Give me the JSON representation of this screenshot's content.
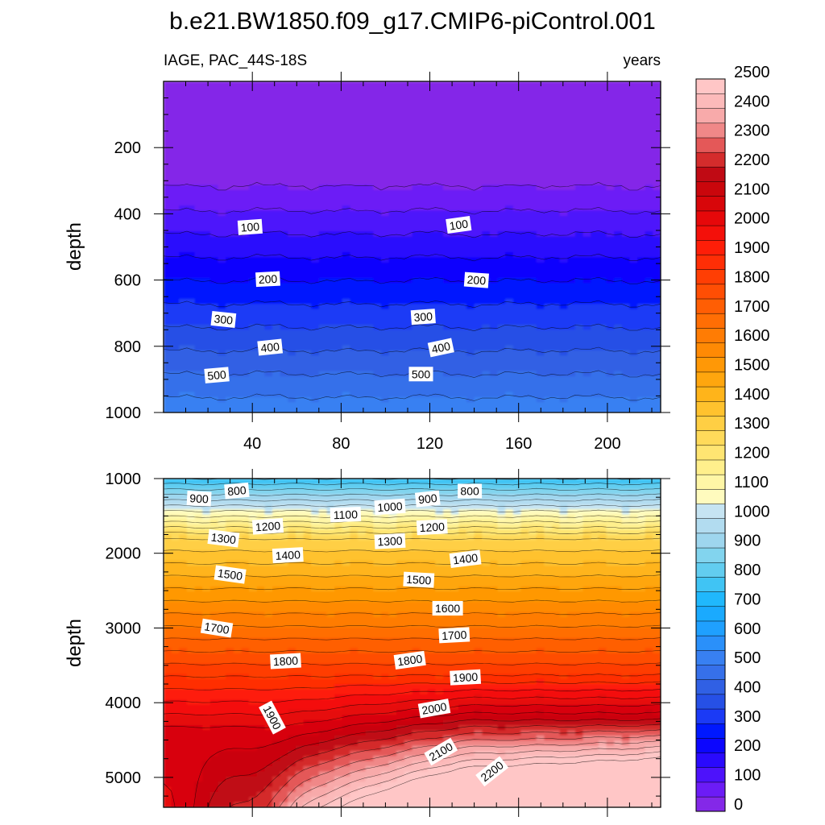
{
  "chart_data": {
    "type": "heatmap",
    "title": "b.e21.BW1850.f09_g17.CMIP6-piControl.001",
    "subtitle_left": "IAGE, PAC_44S-18S",
    "subtitle_right": "years",
    "variable": "IAGE",
    "units": "years",
    "colorbar": {
      "levels": [
        0,
        50,
        100,
        150,
        200,
        250,
        300,
        350,
        400,
        450,
        500,
        550,
        600,
        650,
        700,
        750,
        800,
        850,
        900,
        950,
        1000,
        1050,
        1100,
        1150,
        1200,
        1250,
        1300,
        1350,
        1400,
        1450,
        1500,
        1550,
        1600,
        1650,
        1700,
        1750,
        1800,
        1850,
        1900,
        1950,
        2000,
        2050,
        2100,
        2150,
        2200,
        2250,
        2300,
        2350,
        2400,
        2450,
        2500
      ],
      "labels": [
        "0",
        "100",
        "200",
        "300",
        "400",
        "500",
        "600",
        "700",
        "800",
        "900",
        "1000",
        "1100",
        "1200",
        "1300",
        "1400",
        "1500",
        "1600",
        "1700",
        "1800",
        "1900",
        "2000",
        "2100",
        "2200",
        "2300",
        "2400",
        "2500"
      ],
      "colors": [
        "#8428e8",
        "#6c1cf6",
        "#4d12fb",
        "#2a0afd",
        "#0c06fe",
        "#0018fe",
        "#1b3af6",
        "#2650e6",
        "#3060e4",
        "#3670ea",
        "#3880f2",
        "#2a90fa",
        "#1fa0fe",
        "#1aaafe",
        "#20b8fc",
        "#40c4f4",
        "#62cdf0",
        "#82d4ee",
        "#9ed6ee",
        "#b2dcf0",
        "#c6e4f2",
        "#fffbbe",
        "#fff6a6",
        "#ffef8c",
        "#ffe572",
        "#ffda5a",
        "#ffcf44",
        "#ffc22e",
        "#ffb41a",
        "#ffa60e",
        "#ff9806",
        "#ff8a04",
        "#ff7c04",
        "#ff6e04",
        "#ff5e04",
        "#ff4e04",
        "#ff3e04",
        "#ff2e06",
        "#fe1e08",
        "#f4100a",
        "#e6080a",
        "#d8060a",
        "#ca060c",
        "#c00a14",
        "#d42c2c",
        "#e45858",
        "#f08888",
        "#f8aaaa",
        "#fcbaba",
        "#ffc6c6"
      ]
    },
    "panels": [
      {
        "name": "upper",
        "ylabel": "depth",
        "ylim": [
          0,
          1000
        ],
        "yticks": [
          200,
          400,
          600,
          800,
          1000
        ],
        "ytick_labels": [
          "200",
          "400",
          "600",
          "800",
          "1000"
        ],
        "xlim": [
          0,
          224
        ],
        "xticks": [
          40,
          80,
          120,
          160,
          200
        ],
        "xtick_labels": [
          "40",
          "80",
          "120",
          "160",
          "200"
        ],
        "contour_labels": [
          {
            "text": "100",
            "x": 39,
            "depth": 440,
            "angle": -4
          },
          {
            "text": "100",
            "x": 133,
            "depth": 433,
            "angle": -8
          },
          {
            "text": "200",
            "x": 47,
            "depth": 597,
            "angle": -3
          },
          {
            "text": "200",
            "x": 141,
            "depth": 600,
            "angle": 4
          },
          {
            "text": "300",
            "x": 27,
            "depth": 719,
            "angle": 6
          },
          {
            "text": "300",
            "x": 117,
            "depth": 711,
            "angle": -4
          },
          {
            "text": "400",
            "x": 48,
            "depth": 803,
            "angle": -6
          },
          {
            "text": "400",
            "x": 125,
            "depth": 804,
            "angle": -12
          },
          {
            "text": "500",
            "x": 24,
            "depth": 887,
            "angle": -5
          },
          {
            "text": "500",
            "x": 116,
            "depth": 884,
            "angle": 0
          }
        ]
      },
      {
        "name": "lower",
        "ylabel": "depth",
        "ylim": [
          1000,
          5400
        ],
        "yticks": [
          1000,
          2000,
          3000,
          4000,
          5000
        ],
        "ytick_labels": [
          "1000",
          "2000",
          "3000",
          "4000",
          "5000"
        ],
        "xlim": [
          0,
          224
        ],
        "xticks": [
          40,
          80,
          120,
          160,
          200
        ],
        "contour_labels": [
          {
            "text": "900",
            "x": 16,
            "depth": 1267,
            "angle": 3
          },
          {
            "text": "800",
            "x": 33,
            "depth": 1163,
            "angle": -5
          },
          {
            "text": "1100",
            "x": 82,
            "depth": 1482,
            "angle": -2
          },
          {
            "text": "1000",
            "x": 102,
            "depth": 1377,
            "angle": -4
          },
          {
            "text": "900",
            "x": 119,
            "depth": 1271,
            "angle": -6
          },
          {
            "text": "800",
            "x": 138,
            "depth": 1167,
            "angle": 0
          },
          {
            "text": "1200",
            "x": 47,
            "depth": 1640,
            "angle": -4
          },
          {
            "text": "1200",
            "x": 121,
            "depth": 1650,
            "angle": -3
          },
          {
            "text": "1300",
            "x": 27,
            "depth": 1801,
            "angle": 7
          },
          {
            "text": "1300",
            "x": 102,
            "depth": 1838,
            "angle": -3
          },
          {
            "text": "1400",
            "x": 56,
            "depth": 2026,
            "angle": -3
          },
          {
            "text": "1400",
            "x": 136,
            "depth": 2075,
            "angle": -7
          },
          {
            "text": "1500",
            "x": 30,
            "depth": 2284,
            "angle": 8
          },
          {
            "text": "1500",
            "x": 115,
            "depth": 2355,
            "angle": 3
          },
          {
            "text": "1600",
            "x": 128,
            "depth": 2736,
            "angle": 0
          },
          {
            "text": "1700",
            "x": 24,
            "depth": 3002,
            "angle": 9
          },
          {
            "text": "1700",
            "x": 131,
            "depth": 3097,
            "angle": -3
          },
          {
            "text": "1800",
            "x": 55,
            "depth": 3443,
            "angle": -3
          },
          {
            "text": "1800",
            "x": 111,
            "depth": 3431,
            "angle": -8
          },
          {
            "text": "1900",
            "x": 136,
            "depth": 3661,
            "angle": -3
          },
          {
            "text": "1900",
            "x": 49,
            "depth": 4199,
            "angle": 62
          },
          {
            "text": "2000",
            "x": 122,
            "depth": 4077,
            "angle": -10
          },
          {
            "text": "2100",
            "x": 125,
            "depth": 4656,
            "angle": -30
          },
          {
            "text": "2200",
            "x": 148,
            "depth": 4919,
            "angle": -38
          }
        ]
      }
    ]
  }
}
